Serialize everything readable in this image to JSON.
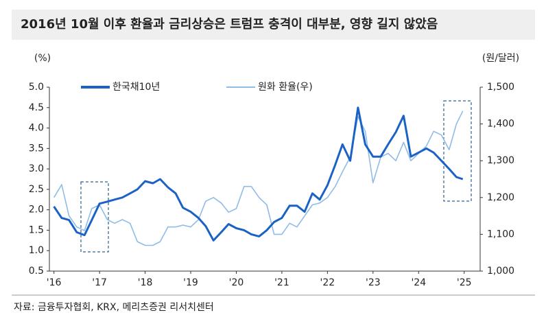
{
  "chart_data": {
    "type": "line",
    "title": "2016년 10월 이후 환율과 금리상승은 트럼프 충격이 대부분, 영향 길지 않았음",
    "y_label": "(%)",
    "y2_label": "(원/달러)",
    "source": "자료: 금융투자협회, KRX, 메리츠증권 리서치센터",
    "x": [
      2016.0,
      2016.17,
      2016.33,
      2016.5,
      2016.67,
      2016.83,
      2017.0,
      2017.17,
      2017.33,
      2017.5,
      2017.67,
      2017.83,
      2018.0,
      2018.17,
      2018.33,
      2018.5,
      2018.67,
      2018.83,
      2019.0,
      2019.17,
      2019.33,
      2019.5,
      2019.67,
      2019.83,
      2020.0,
      2020.17,
      2020.33,
      2020.5,
      2020.67,
      2020.83,
      2021.0,
      2021.17,
      2021.33,
      2021.5,
      2021.67,
      2021.83,
      2022.0,
      2022.17,
      2022.33,
      2022.5,
      2022.67,
      2022.83,
      2023.0,
      2023.17,
      2023.33,
      2023.5,
      2023.67,
      2023.83,
      2024.0,
      2024.17,
      2024.33,
      2024.5,
      2024.67,
      2024.83,
      2024.97
    ],
    "series": [
      {
        "name": "한국채10년",
        "color": "#1a62c5",
        "values": [
          2.08,
          1.8,
          1.75,
          1.45,
          1.38,
          1.75,
          2.15,
          2.2,
          2.25,
          2.3,
          2.4,
          2.5,
          2.7,
          2.65,
          2.75,
          2.55,
          2.4,
          2.05,
          1.95,
          1.8,
          1.6,
          1.25,
          1.45,
          1.65,
          1.55,
          1.5,
          1.4,
          1.35,
          1.5,
          1.7,
          1.8,
          2.1,
          2.1,
          1.95,
          2.4,
          2.25,
          2.6,
          3.1,
          3.6,
          3.2,
          4.5,
          3.6,
          3.3,
          3.3,
          3.6,
          3.9,
          4.3,
          3.3,
          3.4,
          3.5,
          3.4,
          3.2,
          3.0,
          2.8,
          2.75
        ]
      },
      {
        "name": "원화 환율(우)",
        "color": "#8fbbe9",
        "axis": "y2",
        "values": [
          1200,
          1235,
          1150,
          1120,
          1110,
          1170,
          1180,
          1140,
          1130,
          1140,
          1130,
          1080,
          1070,
          1070,
          1080,
          1120,
          1120,
          1125,
          1120,
          1140,
          1190,
          1200,
          1185,
          1160,
          1170,
          1230,
          1230,
          1200,
          1180,
          1100,
          1100,
          1130,
          1120,
          1150,
          1180,
          1185,
          1200,
          1230,
          1270,
          1310,
          1420,
          1380,
          1240,
          1310,
          1320,
          1300,
          1350,
          1300,
          1320,
          1340,
          1380,
          1370,
          1330,
          1400,
          1435
        ]
      }
    ],
    "xlim": [
      2015.9,
      2025.35
    ],
    "xticks": [
      {
        "value": 2016,
        "label": "'16"
      },
      {
        "value": 2017,
        "label": "'17"
      },
      {
        "value": 2018,
        "label": "'18"
      },
      {
        "value": 2019,
        "label": "'19"
      },
      {
        "value": 2020,
        "label": "'20"
      },
      {
        "value": 2021,
        "label": "'21"
      },
      {
        "value": 2022,
        "label": "'22"
      },
      {
        "value": 2023,
        "label": "'23"
      },
      {
        "value": 2024,
        "label": "'24"
      },
      {
        "value": 2025,
        "label": "'25"
      }
    ],
    "ylim": [
      0.5,
      5
    ],
    "yticks": [
      {
        "value": 5,
        "label": "5.0"
      },
      4.5,
      {
        "value": 4,
        "label": "4.0"
      },
      3.5,
      {
        "value": 3,
        "label": "3.0"
      },
      2.5,
      {
        "value": 2,
        "label": "2.0"
      },
      1.5,
      {
        "value": 1,
        "label": "1.0"
      },
      0.5
    ],
    "y2lim": [
      1000,
      1500
    ],
    "y2ticks": [
      {
        "value": 1000,
        "label": "1,000"
      },
      {
        "value": 1100,
        "label": "1,100"
      },
      {
        "value": 1200,
        "label": "1,200"
      },
      {
        "value": 1300,
        "label": "1,300"
      },
      {
        "value": 1400,
        "label": "1,400"
      },
      {
        "value": 1500,
        "label": "1,500"
      }
    ]
  }
}
